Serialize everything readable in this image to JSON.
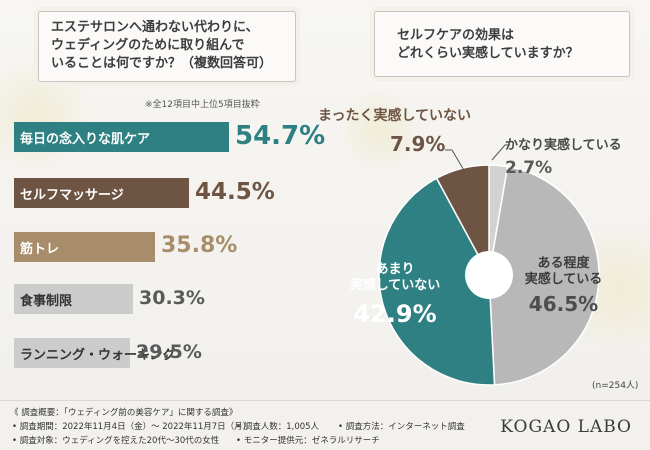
{
  "question1": {
    "lines": [
      "エステサロンへ通わない代わりに、",
      "ウェディングのために取り組んで",
      "いることは何ですか？（複数回答可）"
    ]
  },
  "question2": {
    "lines": [
      "セルフケアの効果は",
      "どれくらい実感していますか？"
    ]
  },
  "bar_note": "※全12項目中上位5項目抜粋",
  "pie_note": "(n=254人)",
  "colors": {
    "teal": "#2f8083",
    "brown": "#6e5443",
    "tan": "#a88d6b",
    "gray": "#c4c4c4",
    "light_gray": "#cfcfcf"
  },
  "chart_data": [
    {
      "type": "bar",
      "orientation": "horizontal",
      "categories": [
        "毎日の念入りな肌ケア",
        "セルフマッサージ",
        "筋トレ",
        "食事制限",
        "ランニング・ウォーキング"
      ],
      "values": [
        54.7,
        44.5,
        35.8,
        30.3,
        29.5
      ],
      "value_labels": [
        "54.7%",
        "44.5%",
        "35.8%",
        "30.3%",
        "29.5%"
      ],
      "bar_colors": [
        "#2f8083",
        "#6e5443",
        "#a88d6b",
        "#cccccc",
        "#cccccc"
      ]
    },
    {
      "type": "pie",
      "categories": [
        "かなり実感している",
        "ある程度実感している",
        "あまり実感していない",
        "まったく実感していない"
      ],
      "values": [
        2.7,
        46.5,
        42.9,
        7.9
      ],
      "value_labels": [
        "2.7%",
        "46.5%",
        "42.9%",
        "7.9%"
      ],
      "slice_colors": [
        "#d2d2d2",
        "#b8b8b8",
        "#2f8083",
        "#6e5443"
      ],
      "label_lines": [
        [
          "かなり実感している"
        ],
        [
          "ある程度",
          "実感している"
        ],
        [
          "あまり",
          "実感していない"
        ],
        [
          "まったく実感していない"
        ]
      ]
    }
  ],
  "footer": {
    "title": "《 調査概要：「ウェディング前の美容ケア」に関する調査》",
    "period": "• 調査期間：2022年11月4日（金）～ 2022年11月7日（月）",
    "count": "• 調査人数：1,005人",
    "method": "• 調査方法：インターネット調査",
    "target": "• 調査対象：ウェディングを控えた20代～30代の女性",
    "provider": "• モニター提供元：ゼネラルリサーチ",
    "logo": "KOGAO LABO"
  }
}
